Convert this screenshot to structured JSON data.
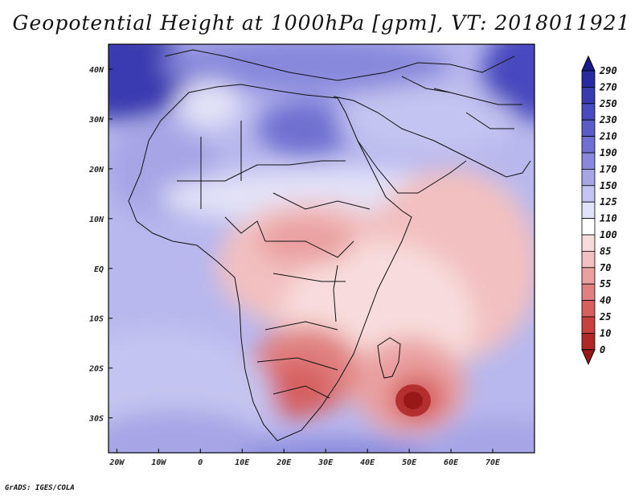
{
  "title": "Geopotential Height at 1000hPa [gpm], VT: 2018011921",
  "map": {
    "region": "Africa",
    "lon_range": [
      -22,
      80
    ],
    "lat_range": [
      -37,
      45
    ],
    "lon_ticks": [
      "20W",
      "10W",
      "0",
      "10E",
      "20E",
      "30E",
      "40E",
      "50E",
      "60E",
      "70E"
    ],
    "lat_ticks": [
      "40N",
      "30N",
      "20N",
      "10N",
      "EQ",
      "10S",
      "20S",
      "30S"
    ],
    "variable": "Geopotential Height",
    "level": "1000hPa",
    "units": "gpm"
  },
  "colorbar": {
    "labels": [
      "290",
      "270",
      "250",
      "230",
      "210",
      "190",
      "170",
      "150",
      "125",
      "110",
      "100",
      "85",
      "70",
      "55",
      "40",
      "25",
      "10",
      "0"
    ],
    "colors": [
      "#1a1a8c",
      "#2a2aa0",
      "#3a3ab0",
      "#4a4abf",
      "#5c5cc9",
      "#7070d2",
      "#8888dc",
      "#a6a6e6",
      "#c4c4f0",
      "#e2e2f8",
      "#ffffff",
      "#f8dcdc",
      "#f2c0c0",
      "#eaa0a0",
      "#e08080",
      "#d66060",
      "#c84040",
      "#b02828",
      "#981818"
    ]
  },
  "credit": "GrADS: IGES/COLA"
}
